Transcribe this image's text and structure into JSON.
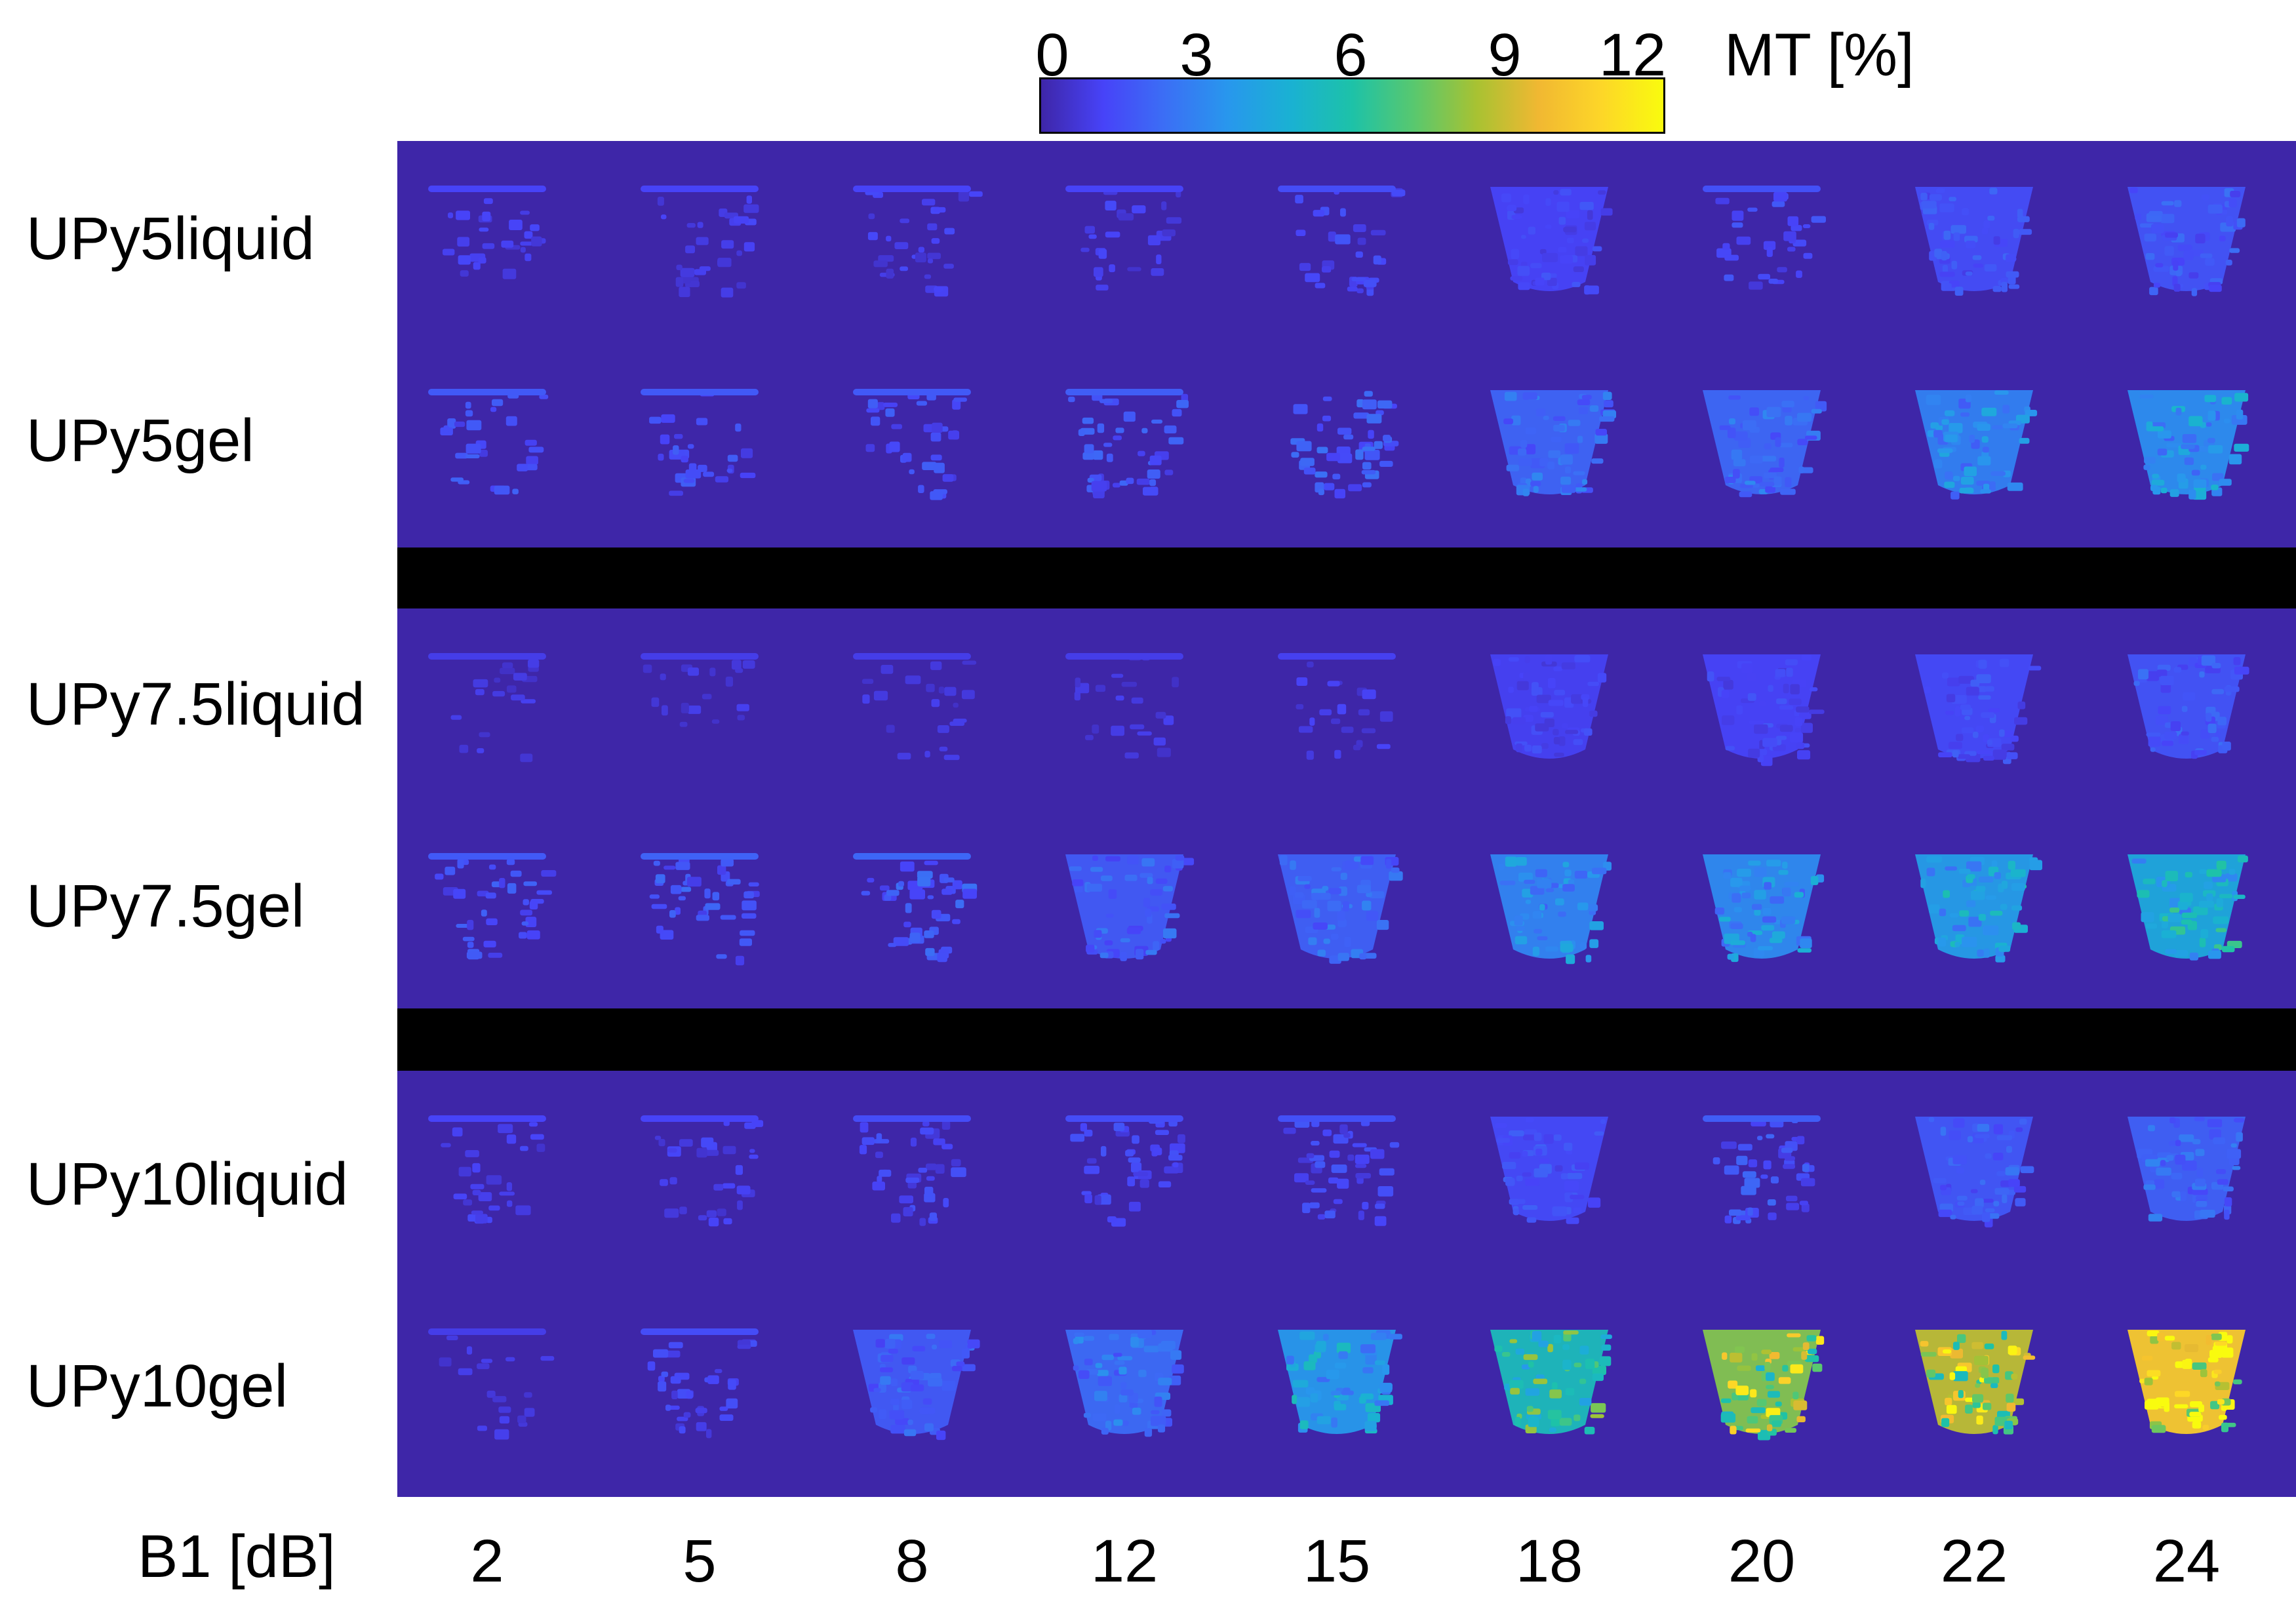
{
  "chart_data": {
    "type": "heatmap",
    "rows": [
      "UPy5liquid",
      "UPy5gel",
      "UPy7.5liquid",
      "UPy7.5gel",
      "UPy10liquid",
      "UPy10gel"
    ],
    "x_title": "B1 [dB]",
    "columns": [
      "2",
      "5",
      "8",
      "12",
      "15",
      "18",
      "20",
      "22",
      "24"
    ],
    "colorbar": {
      "label": "MT [%]",
      "ticks": [
        "0",
        "3",
        "6",
        "9",
        "12"
      ],
      "range": [
        0,
        13
      ],
      "colormap": "parula"
    },
    "values": [
      [
        1.0,
        1.0,
        1.0,
        1.0,
        1.2,
        1.3,
        1.3,
        1.6,
        1.8
      ],
      [
        1.5,
        1.5,
        1.5,
        1.6,
        1.8,
        2.3,
        2.4,
        3.2,
        3.6
      ],
      [
        0.8,
        0.8,
        0.8,
        0.8,
        0.9,
        1.2,
        1.3,
        1.5,
        1.8
      ],
      [
        1.5,
        1.7,
        1.8,
        2.0,
        2.2,
        3.3,
        3.5,
        4.2,
        4.8
      ],
      [
        1.0,
        1.0,
        1.2,
        1.2,
        1.3,
        1.5,
        1.6,
        1.9,
        2.2
      ],
      [
        0.8,
        1.2,
        2.0,
        2.5,
        4.0,
        6.0,
        8.5,
        9.5,
        11.2
      ]
    ],
    "coverage": [
      [
        0.45,
        0.5,
        0.5,
        0.4,
        0.5,
        0.85,
        0.5,
        0.95,
        0.95
      ],
      [
        0.45,
        0.45,
        0.55,
        0.75,
        0.8,
        0.95,
        0.9,
        0.95,
        0.95
      ],
      [
        0.3,
        0.3,
        0.35,
        0.35,
        0.35,
        0.9,
        0.9,
        0.9,
        0.95
      ],
      [
        0.6,
        0.65,
        0.7,
        0.85,
        0.9,
        0.95,
        0.95,
        0.95,
        0.95
      ],
      [
        0.45,
        0.5,
        0.6,
        0.7,
        0.75,
        0.85,
        0.75,
        0.9,
        0.95
      ],
      [
        0.3,
        0.6,
        0.95,
        0.95,
        0.95,
        0.95,
        0.95,
        0.95,
        0.95
      ]
    ],
    "background_color": "#3e26a8",
    "separator_color": "#000000"
  }
}
